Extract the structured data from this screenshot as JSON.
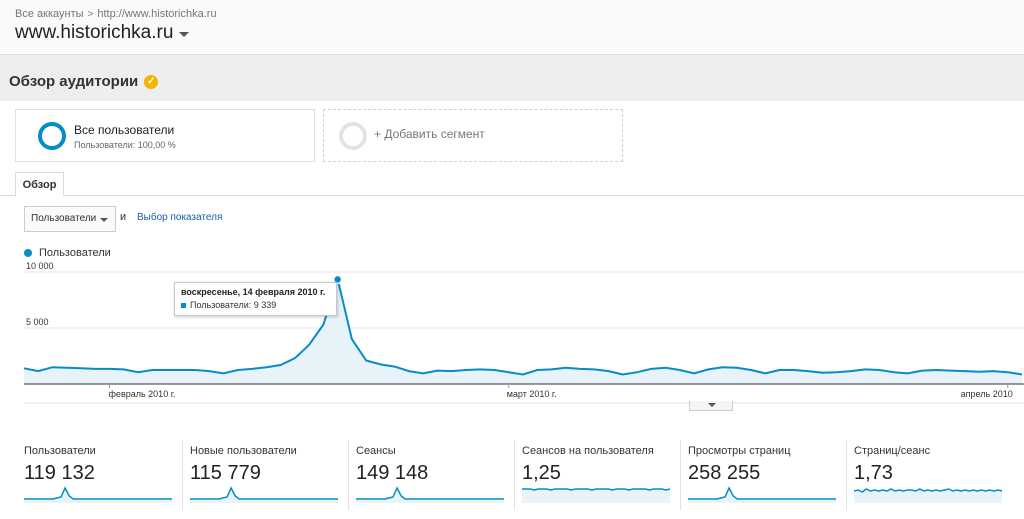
{
  "breadcrumb": {
    "accounts": "Все аккаунты",
    "property": "http://www.historichka.ru"
  },
  "account_name": "www.historichka.ru",
  "page_title": "Обзор аудитории",
  "badge_icon": "check-badge-icon",
  "segments": [
    {
      "label": "Все пользователи",
      "sub": "Пользователи: 100,00 %"
    },
    {
      "label": "+ Добавить сегмент"
    }
  ],
  "tab_label": "Обзор",
  "metric_selector": {
    "value": "Пользователи",
    "and_label": "и",
    "pick_label": "Выбор показателя"
  },
  "legend_label": "Пользователи",
  "chart_data": {
    "type": "area",
    "y_tick_labels": [
      "10 000",
      "5 000"
    ],
    "ylim": [
      0,
      10000
    ],
    "x_tick_labels": [
      "февраль 2010 г.",
      "март 2010 г.",
      "апрель 2010"
    ],
    "series": [
      {
        "name": "Пользователи",
        "color": "#058dc7",
        "values": [
          1400,
          1150,
          1500,
          1450,
          1400,
          1350,
          1350,
          1300,
          1050,
          1250,
          1250,
          1250,
          1250,
          1150,
          950,
          1250,
          1350,
          1500,
          1700,
          2300,
          3500,
          5300,
          9339,
          4000,
          2100,
          1750,
          1550,
          1150,
          950,
          1200,
          1150,
          1250,
          1300,
          1250,
          1050,
          850,
          1250,
          1300,
          1450,
          1350,
          1300,
          1150,
          850,
          1050,
          1350,
          1450,
          1250,
          950,
          1300,
          1500,
          1450,
          1250,
          950,
          1250,
          1250,
          1150,
          1000,
          1050,
          1150,
          1300,
          1250,
          1050,
          950,
          1200,
          1250,
          1200,
          1150,
          1100,
          1150,
          1050,
          850
        ]
      }
    ],
    "tooltip": {
      "date": "воскресенье, 14 февраля 2010 г.",
      "value_label": "Пользователи: 9 339"
    }
  },
  "scorecards": [
    {
      "label": "Пользователи",
      "value": "119 132",
      "spark": "peak"
    },
    {
      "label": "Новые пользователи",
      "value": "115 779",
      "spark": "peak"
    },
    {
      "label": "Сеансы",
      "value": "149 148",
      "spark": "peak"
    },
    {
      "label": "Сеансов на пользователя",
      "value": "1,25",
      "spark": "flat"
    },
    {
      "label": "Просмотры страниц",
      "value": "258 255",
      "spark": "peak"
    },
    {
      "label": "Страниц/сеанс",
      "value": "1,73",
      "spark": "noisy"
    }
  ]
}
